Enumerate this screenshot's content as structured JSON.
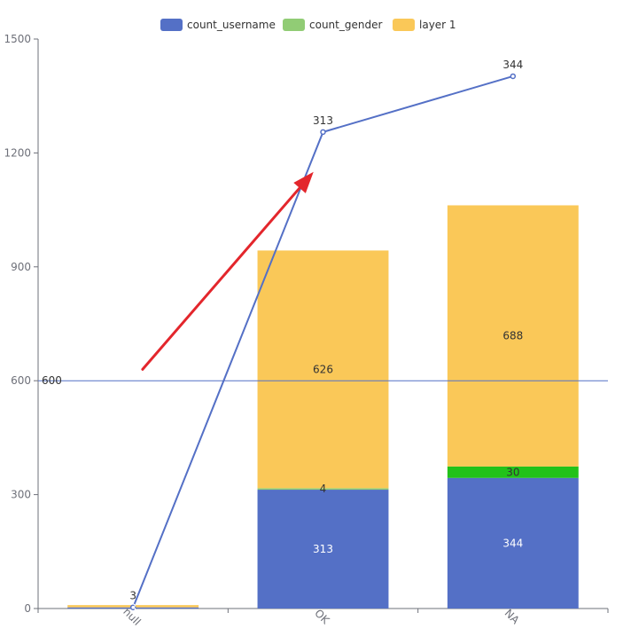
{
  "chart_data": {
    "type": "bar",
    "categories": [
      "null",
      "OK",
      "NA"
    ],
    "y_ticks": [
      "0",
      "300",
      "600",
      "900",
      "1200",
      "1500"
    ],
    "ylim": [
      0,
      1500
    ],
    "grid": false,
    "legend_position": "top-center",
    "series": [
      {
        "name": "count_username",
        "type": "bar",
        "stack": "total",
        "color": "#5470c6",
        "label_color": "#ffffff",
        "values": [
          3,
          313,
          344
        ],
        "labels": [
          "3",
          "313",
          "344"
        ]
      },
      {
        "name": "count_gender",
        "type": "bar",
        "stack": "total",
        "color": "#91cc75",
        "label_color": "#333333",
        "values": [
          0,
          4,
          30
        ],
        "labels": [
          "",
          "4",
          "30"
        ]
      },
      {
        "name": "layer 1",
        "type": "bar",
        "stack": "total",
        "color": "#fac858",
        "label_color": "#333333",
        "values": [
          6,
          626,
          688
        ],
        "labels": [
          "",
          "626",
          "688"
        ]
      },
      {
        "name": "",
        "type": "line",
        "color": "#5470c6",
        "values": [
          3,
          1255,
          1402
        ],
        "labels": [
          "3",
          "313",
          "344"
        ]
      }
    ],
    "highlight_colors": {
      "NA": {
        "count_gender": "#22c21a"
      }
    },
    "markline": {
      "value": 600,
      "label": "600",
      "color": "#5470c6"
    },
    "arrow": {
      "color": "#e3262c",
      "from": {
        "category": 0.05,
        "value": 630
      },
      "to": {
        "category": 0.95,
        "value": 1150
      }
    }
  }
}
